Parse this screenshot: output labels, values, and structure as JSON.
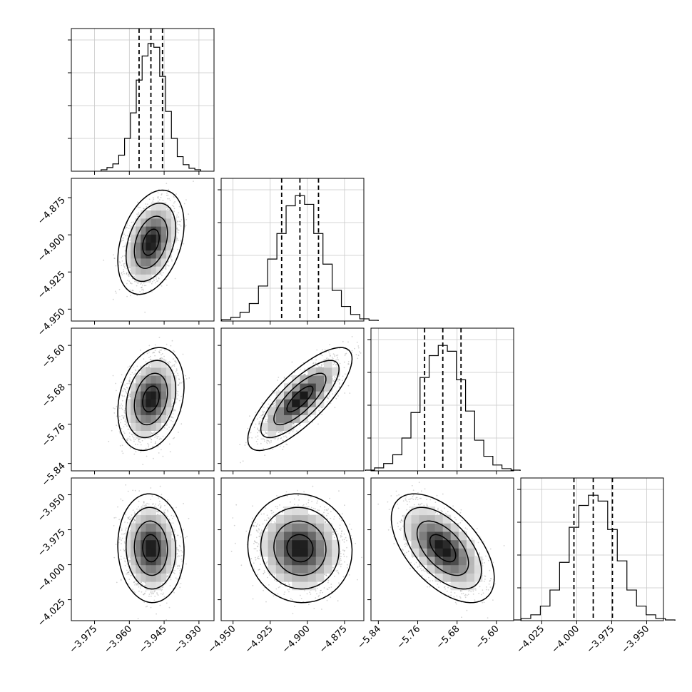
{
  "chart_data": {
    "type": "corner",
    "title": "",
    "parameters": [
      {
        "range": [
          -3.985,
          -3.9235
        ],
        "ticks": [
          -3.975,
          -3.96,
          -3.945,
          -3.93
        ],
        "tick_labels": [
          "−3.975",
          "−3.960",
          "−3.945",
          "−3.930"
        ],
        "quantiles": [
          -3.9558,
          -3.9507,
          -3.9457
        ],
        "histogram_counts": [
          2,
          5,
          10,
          22,
          45,
          80,
          125,
          158,
          175,
          170,
          130,
          82,
          45,
          20,
          9,
          4,
          2
        ],
        "histogram_peak": 180
      },
      {
        "range": [
          -4.958,
          -4.862
        ],
        "ticks": [
          -4.95,
          -4.925,
          -4.9,
          -4.875
        ],
        "tick_labels": [
          "−4.950",
          "−4.925",
          "−4.900",
          "−4.875"
        ],
        "quantiles": [
          -4.9173,
          -4.905,
          -4.8925
        ],
        "histogram_counts": [
          2,
          5,
          12,
          24,
          48,
          85,
          120,
          158,
          172,
          160,
          120,
          78,
          42,
          20,
          9,
          3,
          1
        ],
        "histogram_peak": 180
      },
      {
        "range": [
          -5.855,
          -5.565
        ],
        "ticks": [
          -5.84,
          -5.76,
          -5.68,
          -5.6
        ],
        "tick_labels": [
          "−5.84",
          "−5.76",
          "−5.68",
          "−5.60"
        ],
        "quantiles": [
          -5.746,
          -5.709,
          -5.672
        ],
        "histogram_counts": [
          1,
          4,
          10,
          22,
          45,
          80,
          128,
          158,
          172,
          164,
          125,
          82,
          42,
          20,
          8,
          3,
          1
        ],
        "histogram_peak": 180
      },
      {
        "range": [
          -4.04,
          -3.938
        ],
        "ticks": [
          -4.025,
          -4.0,
          -3.975,
          -3.95
        ],
        "tick_labels": [
          "−4.025",
          "−4.000",
          "−3.975",
          "−3.950"
        ],
        "quantiles": [
          -4.002,
          -3.9882,
          -3.9745
        ],
        "histogram_counts": [
          1,
          3,
          8,
          20,
          42,
          80,
          128,
          158,
          172,
          164,
          125,
          82,
          42,
          20,
          8,
          3,
          1
        ],
        "histogram_peak": 180
      }
    ],
    "pairs": [
      {
        "row": 1,
        "col": 0,
        "correlation": 0.35
      },
      {
        "row": 2,
        "col": 0,
        "correlation": 0.25
      },
      {
        "row": 2,
        "col": 1,
        "correlation": 0.78
      },
      {
        "row": 3,
        "col": 0,
        "correlation": -0.05
      },
      {
        "row": 3,
        "col": 1,
        "correlation": -0.05
      },
      {
        "row": 3,
        "col": 2,
        "correlation": -0.55
      }
    ],
    "contour_levels_sigma": [
      0.5,
      1.0,
      1.5,
      2.0
    ],
    "grid": true,
    "colors": {
      "lines": "#000000",
      "grid": "#c8c8c8",
      "points": "#808080",
      "quantile": "#000000"
    }
  }
}
